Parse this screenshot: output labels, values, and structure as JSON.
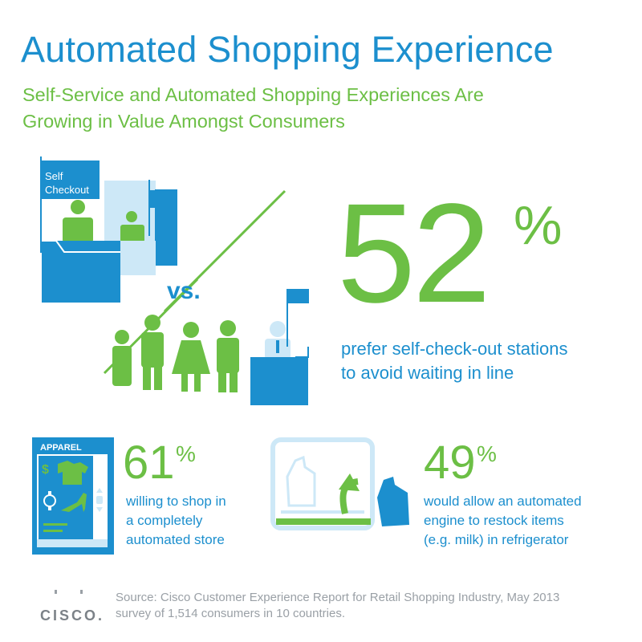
{
  "header": {
    "title": "Automated Shopping Experience",
    "subtitle_line1": "Self-Service and Automated Shopping Experiences Are",
    "subtitle_line2": "Growing in Value Amongst Consumers"
  },
  "illustration": {
    "checkout_sign": "Self Checkout",
    "checkout_sign_line1": "Self",
    "checkout_sign_line2": "Checkout",
    "versus": "vs.",
    "apparel_label": "APPAREL",
    "price_symbol": "$"
  },
  "stats": [
    {
      "number": "52",
      "suffix": "%",
      "line1": "prefer self-check-out stations",
      "line2": "to avoid waiting in line",
      "line3": ""
    },
    {
      "number": "61",
      "suffix": "%",
      "line1": "willing to shop in",
      "line2": "a completely",
      "line3": "automated store"
    },
    {
      "number": "49",
      "suffix": "%",
      "line1": "would allow an automated",
      "line2": "engine to restock items",
      "line3": "(e.g. milk) in refrigerator"
    }
  ],
  "footer": {
    "source_line1": "Source: Cisco Customer Experience Report for Retail Shopping Industry, May 2013",
    "source_line2": "survey of 1,514 consumers in 10 countries.",
    "logo_text": "CISCO."
  },
  "colors": {
    "blue": "#1c8fce",
    "green": "#6cbf45",
    "light_blue": "#cde8f7",
    "gray": "#9aa0a6"
  }
}
